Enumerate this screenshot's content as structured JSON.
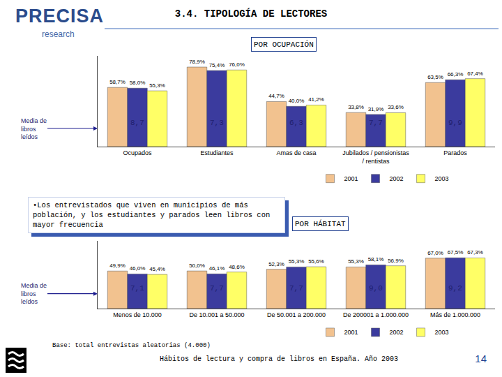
{
  "slide": {
    "logo": "PRECISA",
    "logo_sub": "research",
    "title": "3.4. TIPOLOGÍA DE LECTORES",
    "note": "•Los entrevistados que viven en municipios de más población, y los estudiantes y parados leen libros con mayor frecuencia",
    "base": "Base: total entrevistas aleatorias (4.000)",
    "footer": "Hábitos de lectura y compra de libros en España. Año 2003",
    "page": 14
  },
  "chart_data": [
    {
      "type": "bar",
      "title": "POR OCUPACIÓN",
      "categories": [
        "Ocupados",
        "Estudiantes",
        "Amas de casa",
        "Jubilados / pensionistas / rentistas",
        "Parados"
      ],
      "series": [
        {
          "name": "2001",
          "color": "#F2C28F",
          "values": [
            58.7,
            78.9,
            44.7,
            33.8,
            63.5
          ],
          "value_labels": [
            "58,7%",
            "78,9%",
            "44,7%",
            "33,8%",
            "63,5%"
          ]
        },
        {
          "name": "2002",
          "color": "#3B3B9E",
          "values": [
            58.0,
            75.4,
            40.0,
            31.9,
            66.3
          ],
          "value_labels": [
            "58,0%",
            "75,4%",
            "40,0%",
            "31,9%",
            "66,3%"
          ]
        },
        {
          "name": "2003",
          "color": "#FFFF66",
          "values": [
            55.3,
            76.0,
            41.2,
            33.6,
            67.4
          ],
          "value_labels": [
            "55,3%",
            "76,0%",
            "41,2%",
            "33,6%",
            "67,4%"
          ]
        }
      ],
      "ylim": [
        0,
        90
      ],
      "tick_labels": "x",
      "grid": false,
      "data_labels": true,
      "legend": "bottom",
      "mean_books": {
        "label": "Media de libros leídos",
        "values": [
          8.7,
          7.3,
          6.3,
          7.7,
          9.9
        ],
        "value_labels": [
          "8,7",
          "7,3",
          "6,3",
          "7,7",
          "9,9"
        ]
      }
    },
    {
      "type": "bar",
      "title": "POR HÁBITAT",
      "categories": [
        "Menos de 10.000",
        "De 10.001 a 50.000",
        "De 50.001 a 200.000",
        "De 200001 a 1.000.000",
        "Más de 1.000.000"
      ],
      "series": [
        {
          "name": "2001",
          "color": "#F2C28F",
          "values": [
            49.9,
            50.0,
            52.3,
            55.3,
            67.0
          ],
          "value_labels": [
            "49,9%",
            "50,0%",
            "52,3%",
            "55,3%",
            "67,0%"
          ]
        },
        {
          "name": "2002",
          "color": "#3B3B9E",
          "values": [
            46.0,
            46.1,
            55.3,
            58.1,
            67.5
          ],
          "value_labels": [
            "46,0%",
            "46,1%",
            "55,3%",
            "58,1%",
            "67,5%"
          ]
        },
        {
          "name": "2003",
          "color": "#FFFF66",
          "values": [
            45.4,
            48.6,
            55.6,
            56.9,
            67.3
          ],
          "value_labels": [
            "45,4%",
            "48,6%",
            "55,6%",
            "56,9%",
            "67,3%"
          ]
        }
      ],
      "ylim": [
        0,
        90
      ],
      "tick_labels": "x",
      "grid": false,
      "data_labels": true,
      "legend": "bottom",
      "mean_books": {
        "label": "Media de libros leídos",
        "values": [
          7.1,
          7.7,
          7.7,
          9.0,
          9.2
        ],
        "value_labels": [
          "7,1",
          "7,7",
          "7,7",
          "9,0",
          "9,2"
        ]
      }
    }
  ]
}
